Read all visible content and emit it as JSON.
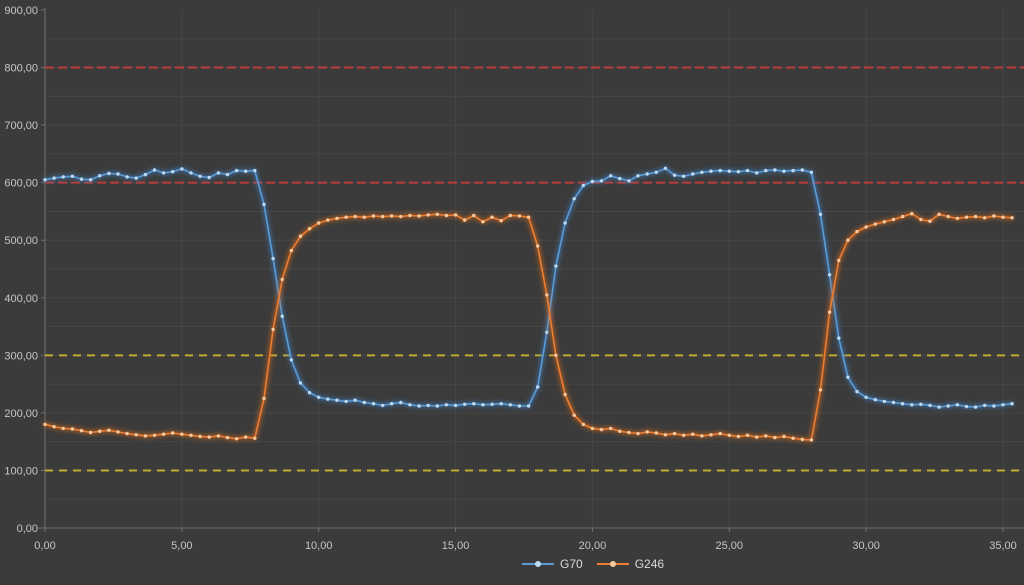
{
  "colors": {
    "background": "#3b3b3b",
    "gridline": "#464646",
    "axis": "#6f6f6f",
    "tick_text": "#c6c6c6",
    "red_reference": "#bc3c3c",
    "yellow_reference": "#bfab32"
  },
  "chart_data": {
    "type": "line",
    "title": "",
    "xlabel": "",
    "ylabel": "",
    "grid": true,
    "legend_position": "bottom-center",
    "x_start": 0,
    "x_interval": 0.33333,
    "x_axis": {
      "min": 0,
      "max": 35,
      "tick_interval": 5,
      "labels": [
        "0,00",
        "5,00",
        "10,00",
        "15,00",
        "20,00",
        "25,00",
        "30,00",
        "35,00"
      ]
    },
    "y_axis": {
      "min": 0,
      "max": 900,
      "tick_interval": 100,
      "minor_interval": 50,
      "labels": [
        "0,00",
        "100,00",
        "200,00",
        "300,00",
        "400,00",
        "500,00",
        "600,00",
        "700,00",
        "800,00",
        "900,00"
      ]
    },
    "reference_lines": [
      {
        "value": 800,
        "color": "#bc3c3c",
        "style": "dashed",
        "dash": "9 4"
      },
      {
        "value": 600,
        "color": "#bc3c3c",
        "style": "dashed",
        "dash": "9 4"
      },
      {
        "value": 300,
        "color": "#bfab32",
        "style": "dashed",
        "dash": "8 6"
      },
      {
        "value": 100,
        "color": "#bfab32",
        "style": "dashed",
        "dash": "8 6"
      }
    ],
    "series": [
      {
        "name": "G70",
        "color": "#5b9bd5",
        "glow_color": "#3f7fc1",
        "marker_color": "#bdd9f2",
        "values": [
          605,
          608,
          610,
          611,
          606,
          605,
          612,
          616,
          615,
          610,
          608,
          614,
          622,
          617,
          619,
          624,
          617,
          611,
          609,
          617,
          614,
          621,
          620,
          621,
          562,
          468,
          368,
          292,
          252,
          235,
          227,
          224,
          222,
          220,
          222,
          218,
          216,
          213,
          216,
          218,
          214,
          212,
          213,
          212,
          214,
          213,
          215,
          216,
          214,
          215,
          216,
          214,
          212,
          212,
          245,
          340,
          455,
          530,
          572,
          595,
          602,
          603,
          612,
          607,
          603,
          612,
          615,
          618,
          625,
          613,
          611,
          615,
          618,
          620,
          621,
          620,
          619,
          621,
          617,
          621,
          622,
          620,
          621,
          622,
          618,
          545,
          440,
          330,
          262,
          237,
          227,
          223,
          220,
          218,
          216,
          214,
          215,
          213,
          210,
          212,
          214,
          211,
          210,
          213,
          212,
          214,
          216
        ]
      },
      {
        "name": "G246",
        "color": "#ed7d31",
        "glow_color": "#d96c1e",
        "marker_color": "#f8c99e",
        "values": [
          180,
          176,
          173,
          172,
          169,
          166,
          168,
          170,
          167,
          164,
          162,
          160,
          161,
          163,
          165,
          163,
          161,
          159,
          158,
          160,
          157,
          155,
          158,
          156,
          225,
          345,
          432,
          482,
          507,
          520,
          530,
          535,
          538,
          540,
          541,
          540,
          542,
          541,
          542,
          541,
          543,
          542,
          544,
          545,
          543,
          544,
          535,
          543,
          532,
          540,
          534,
          543,
          542,
          540,
          490,
          405,
          300,
          232,
          196,
          180,
          173,
          171,
          173,
          168,
          166,
          164,
          167,
          165,
          162,
          164,
          161,
          163,
          160,
          162,
          164,
          161,
          159,
          161,
          158,
          160,
          157,
          159,
          156,
          154,
          153,
          240,
          375,
          465,
          500,
          515,
          523,
          528,
          532,
          536,
          541,
          546,
          536,
          533,
          545,
          541,
          538,
          540,
          541,
          539,
          542,
          540,
          539
        ]
      }
    ],
    "legend": [
      {
        "label": "G70"
      },
      {
        "label": "G246"
      }
    ]
  }
}
